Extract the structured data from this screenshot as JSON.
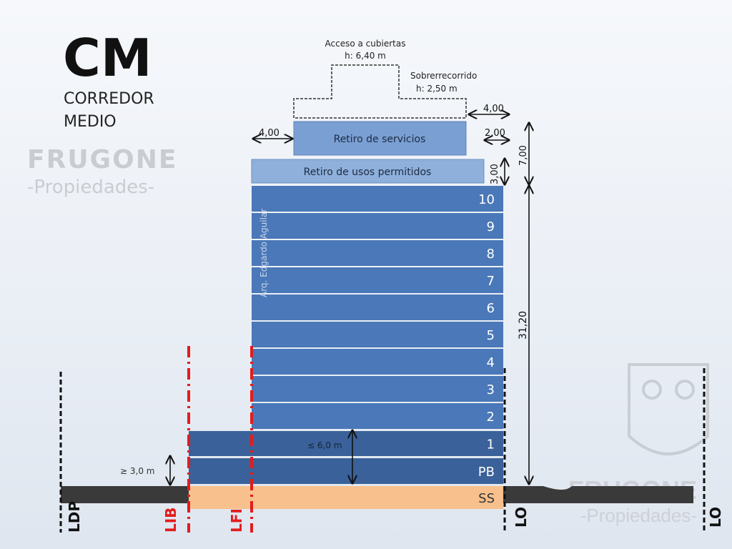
{
  "logo": {
    "code": "CM",
    "line1": "CORREDOR",
    "line2": "MEDIO"
  },
  "watermark": {
    "brand": "FRUGONE",
    "sub": "-Propiedades-"
  },
  "top": {
    "access_label": "Acceso a cubiertas",
    "access_height": "h: 6,40 m",
    "overrun_label": "Sobrerrecorrido",
    "overrun_height": "h: 2,50 m",
    "dim_right_top": "4,00",
    "dim_left_services": "4,00",
    "dim_right_services": "2,00",
    "dim_3": "3,00",
    "dim_7": "7,00",
    "dim_total": "31,20"
  },
  "blocks": {
    "services": "Retiro de servicios",
    "permitted": "Retiro de usos permitidos"
  },
  "author": "Arq. Edgardo Aguilar",
  "floors": [
    "10",
    "9",
    "8",
    "7",
    "6",
    "5",
    "4",
    "3",
    "2",
    "1",
    "PB",
    "SS"
  ],
  "dims": {
    "podium_max": "≤ 6,0 m",
    "min_height": "≥ 3,0 m"
  },
  "lines": {
    "ldp": "LDP",
    "lib": "LIB",
    "lfi": "LFI",
    "lo": "LO",
    "lo_right": "LO"
  },
  "colors": {
    "tower": "#4a78b8",
    "podium": "#3a6199",
    "basement": "#f8c08c",
    "ground": "#3a3a3a",
    "red_line": "#e31c1c",
    "services": "#7a9fd3",
    "permitted": "#8eb0da"
  }
}
